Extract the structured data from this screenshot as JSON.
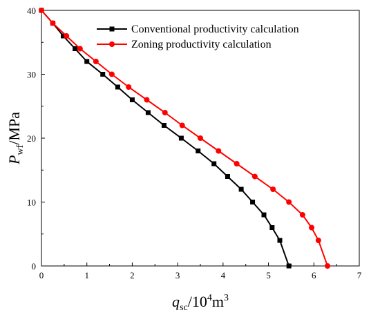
{
  "chart_data": {
    "type": "line",
    "xlabel": {
      "main": "q",
      "sub": "sc",
      "rest": "/10",
      "sup": "4",
      "tail": "m",
      "sup2": "3"
    },
    "ylabel": {
      "main": "P",
      "sub": "wf",
      "rest": "/MPa"
    },
    "xlim": [
      0,
      7
    ],
    "ylim": [
      0,
      40
    ],
    "xticks": [
      0,
      1,
      2,
      3,
      4,
      5,
      6,
      7
    ],
    "yticks": [
      0,
      10,
      20,
      30,
      40
    ],
    "grid": false,
    "legend_position": "top-right",
    "series": [
      {
        "name": "Conventional productivity calculation",
        "color": "#000000",
        "marker": "square",
        "points": [
          [
            0.0,
            40
          ],
          [
            0.25,
            38
          ],
          [
            0.48,
            36
          ],
          [
            0.74,
            34
          ],
          [
            1.0,
            32
          ],
          [
            1.35,
            30
          ],
          [
            1.68,
            28
          ],
          [
            2.0,
            26
          ],
          [
            2.35,
            24
          ],
          [
            2.7,
            22
          ],
          [
            3.08,
            20
          ],
          [
            3.45,
            18
          ],
          [
            3.8,
            16
          ],
          [
            4.1,
            14
          ],
          [
            4.4,
            12
          ],
          [
            4.65,
            10
          ],
          [
            4.9,
            8
          ],
          [
            5.08,
            6
          ],
          [
            5.25,
            4
          ],
          [
            5.45,
            0
          ]
        ]
      },
      {
        "name": "Zoning productivity calculation",
        "color": "#ff0000",
        "marker": "circle",
        "points": [
          [
            0.0,
            40
          ],
          [
            0.25,
            38
          ],
          [
            0.55,
            36
          ],
          [
            0.85,
            34
          ],
          [
            1.2,
            32
          ],
          [
            1.55,
            30
          ],
          [
            1.92,
            28
          ],
          [
            2.32,
            26
          ],
          [
            2.72,
            24
          ],
          [
            3.1,
            22
          ],
          [
            3.5,
            20
          ],
          [
            3.9,
            18
          ],
          [
            4.3,
            16
          ],
          [
            4.7,
            14
          ],
          [
            5.1,
            12
          ],
          [
            5.45,
            10
          ],
          [
            5.75,
            8
          ],
          [
            5.95,
            6
          ],
          [
            6.1,
            4
          ],
          [
            6.3,
            0
          ]
        ]
      }
    ]
  }
}
